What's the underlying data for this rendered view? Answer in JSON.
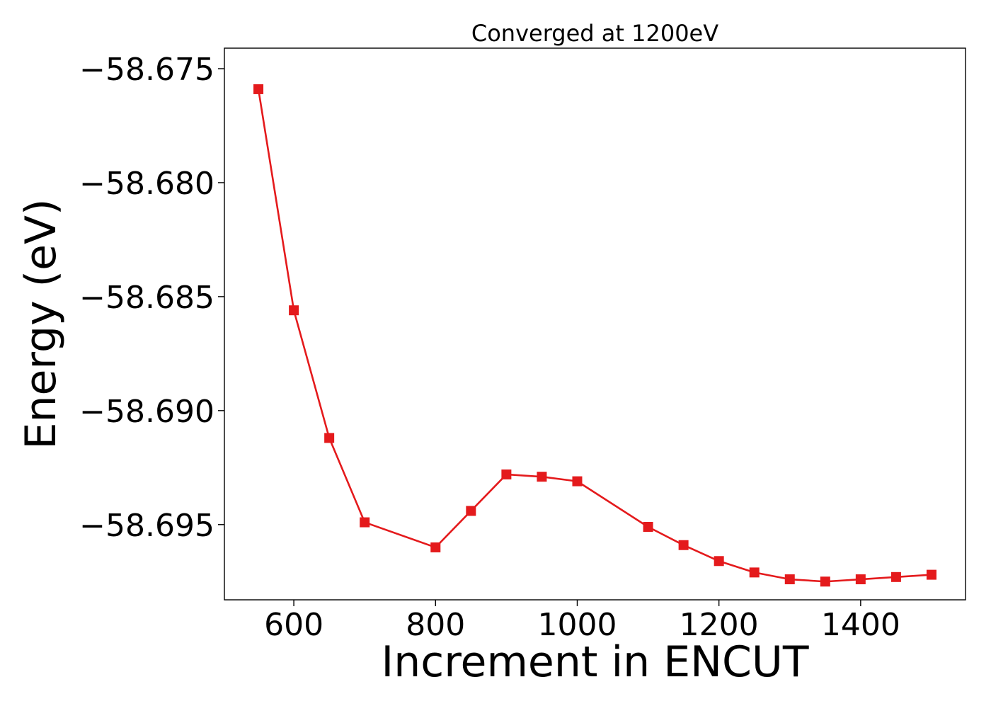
{
  "chart_data": {
    "type": "line",
    "title": "Converged at 1200eV",
    "xlabel": "Increment in ENCUT",
    "ylabel": "Energy (eV)",
    "xlim": [
      502,
      1548
    ],
    "ylim": [
      -58.6983,
      -58.6741
    ],
    "x_ticks": [
      600,
      800,
      1000,
      1200,
      1400
    ],
    "x_tick_labels": [
      "600",
      "800",
      "1000",
      "1200",
      "1400"
    ],
    "y_ticks": [
      -58.675,
      -58.68,
      -58.685,
      -58.69,
      -58.695
    ],
    "y_tick_labels": [
      "−58.675",
      "−58.680",
      "−58.685",
      "−58.690",
      "−58.695"
    ],
    "grid": false,
    "series": [
      {
        "color": "#e41a1c",
        "marker": "square",
        "x": [
          550,
          600,
          650,
          700,
          800,
          850,
          900,
          950,
          1000,
          1100,
          1150,
          1200,
          1250,
          1300,
          1350,
          1400,
          1450,
          1500
        ],
        "y": [
          -58.6759,
          -58.6856,
          -58.6912,
          -58.6949,
          -58.696,
          -58.6944,
          -58.6928,
          -58.6929,
          -58.6931,
          -58.6951,
          -58.6959,
          -58.6966,
          -58.6971,
          -58.6974,
          -58.6975,
          -58.6974,
          -58.6973,
          -58.6972
        ]
      }
    ]
  }
}
